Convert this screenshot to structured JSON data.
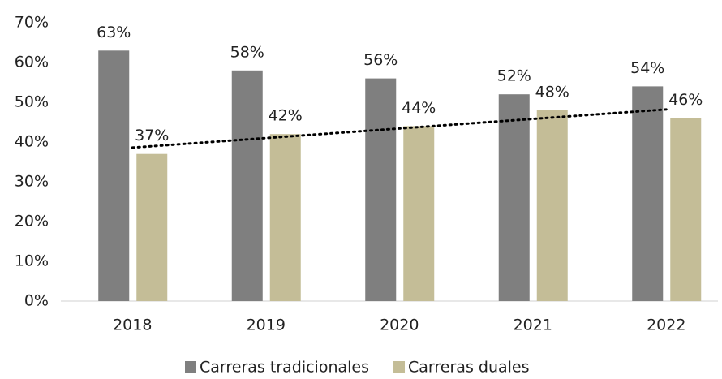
{
  "chart_data": {
    "type": "bar",
    "categories": [
      "2018",
      "2019",
      "2020",
      "2021",
      "2022"
    ],
    "series": [
      {
        "name": "Carreras tradicionales",
        "color": "#7f7f7f",
        "values": [
          63,
          58,
          56,
          52,
          54
        ],
        "value_labels": [
          "63%",
          "58%",
          "56%",
          "52%",
          "54%"
        ]
      },
      {
        "name": "Carreras duales",
        "color": "#c4bd97",
        "values": [
          37,
          42,
          44,
          48,
          46
        ],
        "value_labels": [
          "37%",
          "42%",
          "44%",
          "48%",
          "46%"
        ],
        "trendline": "linear"
      }
    ],
    "ylim": [
      0,
      70
    ],
    "yticks": [
      {
        "value": 0,
        "label": "0%"
      },
      {
        "value": 10,
        "label": "10%"
      },
      {
        "value": 20,
        "label": "20%"
      },
      {
        "value": 30,
        "label": "30%"
      },
      {
        "value": 40,
        "label": "40%"
      },
      {
        "value": 50,
        "label": "50%"
      },
      {
        "value": 60,
        "label": "60%"
      },
      {
        "value": 70,
        "label": "70%"
      }
    ],
    "grid": false,
    "legend": "bottom"
  }
}
